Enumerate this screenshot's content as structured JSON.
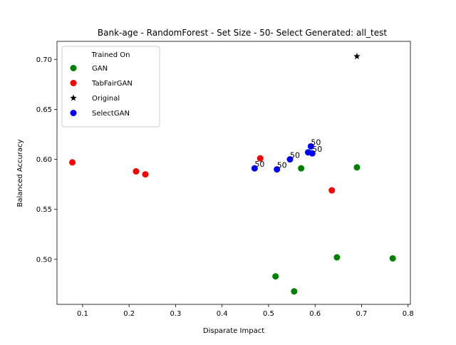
{
  "chart_data": {
    "type": "scatter",
    "title": "Bank-age - RandomForest - Set Size - 50- Select Generated: all_test",
    "xlabel": "Disparate Impact",
    "ylabel": "Balanced Accuracy",
    "xlim": [
      0.045,
      0.805
    ],
    "ylim": [
      0.455,
      0.718
    ],
    "xticks": [
      0.1,
      0.2,
      0.3,
      0.4,
      0.5,
      0.6,
      0.7,
      0.8
    ],
    "yticks": [
      0.5,
      0.55,
      0.6,
      0.65,
      0.7
    ],
    "xtick_labels": [
      "0.1",
      "0.2",
      "0.3",
      "0.4",
      "0.5",
      "0.6",
      "0.7",
      "0.8"
    ],
    "ytick_labels": [
      "0.50",
      "0.55",
      "0.60",
      "0.65",
      "0.70"
    ],
    "grid": false,
    "legend": {
      "title": "Trained On",
      "position": "top-left"
    },
    "series": [
      {
        "name": "GAN",
        "color": "#008000",
        "marker": "circle",
        "points": [
          {
            "x": 0.57,
            "y": 0.591
          },
          {
            "x": 0.69,
            "y": 0.592
          },
          {
            "x": 0.647,
            "y": 0.502
          },
          {
            "x": 0.767,
            "y": 0.501
          },
          {
            "x": 0.515,
            "y": 0.483
          },
          {
            "x": 0.555,
            "y": 0.468
          }
        ]
      },
      {
        "name": "TabFairGAN",
        "color": "#ff0000",
        "marker": "circle",
        "points": [
          {
            "x": 0.078,
            "y": 0.597
          },
          {
            "x": 0.215,
            "y": 0.588
          },
          {
            "x": 0.235,
            "y": 0.585
          },
          {
            "x": 0.482,
            "y": 0.601
          },
          {
            "x": 0.636,
            "y": 0.569
          }
        ]
      },
      {
        "name": "Original",
        "color": "#000000",
        "marker": "star",
        "points": [
          {
            "x": 0.69,
            "y": 0.703
          }
        ]
      },
      {
        "name": "SelectGAN",
        "color": "#0000ff",
        "marker": "circle",
        "points": [
          {
            "x": 0.47,
            "y": 0.591,
            "label": "50"
          },
          {
            "x": 0.518,
            "y": 0.59,
            "label": "50"
          },
          {
            "x": 0.546,
            "y": 0.6,
            "label": "50"
          },
          {
            "x": 0.585,
            "y": 0.607
          },
          {
            "x": 0.594,
            "y": 0.606,
            "label": "50"
          },
          {
            "x": 0.591,
            "y": 0.613,
            "label": "50"
          }
        ]
      }
    ]
  }
}
